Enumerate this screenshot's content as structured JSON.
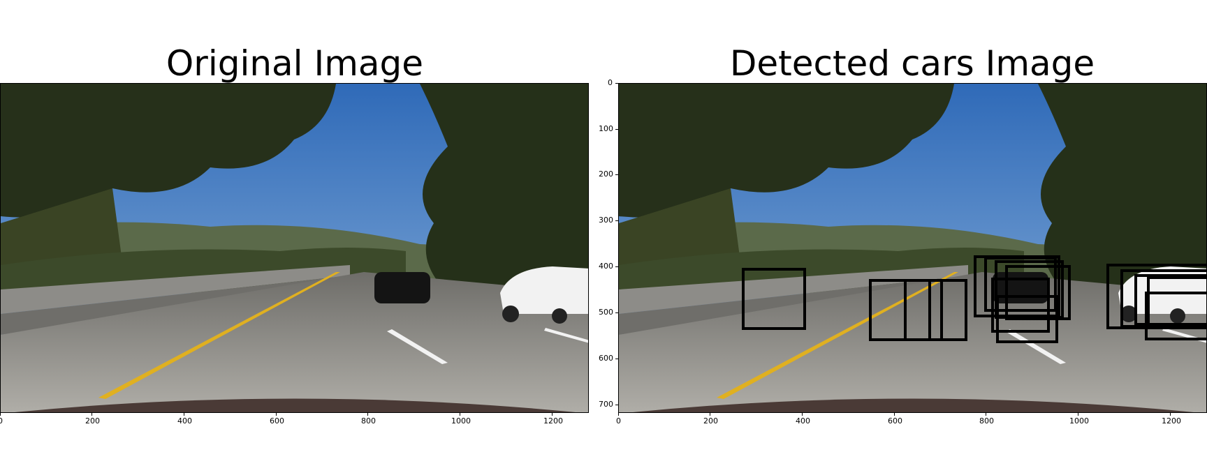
{
  "panels": {
    "left_title": "Original Image",
    "right_title": "Detected cars Image"
  },
  "axes": {
    "x_ticks_left": [
      "0",
      "200",
      "400",
      "600",
      "800",
      "1000",
      "1200"
    ],
    "x_ticks_right": [
      "0",
      "200",
      "400",
      "600",
      "800",
      "1000",
      "1200"
    ],
    "y_ticks_right": [
      "0",
      "100",
      "200",
      "300",
      "400",
      "500",
      "600",
      "700"
    ]
  },
  "colors": {
    "sky": "#4a82c6",
    "road": "#9a9a96",
    "trees": "#2a3418",
    "lane_line": "#e0b020",
    "detection_box": "#000000"
  }
}
